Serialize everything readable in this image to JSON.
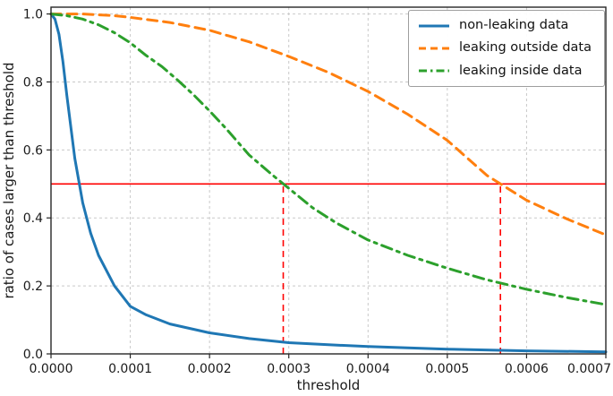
{
  "chart_data": {
    "type": "line",
    "title": "",
    "xlabel": "threshold",
    "ylabel": "ratio of cases larger than threshold",
    "xlim": [
      0.0,
      0.0007
    ],
    "ylim": [
      0.0,
      1.02
    ],
    "grid": true,
    "grid_color": "#c9c9c9",
    "axis_color": "#262626",
    "text_color": "#1a1a1a",
    "legend_position": "upper right",
    "x_ticks": [
      0.0,
      0.0001,
      0.0002,
      0.0003,
      0.0004,
      0.0005,
      0.0006,
      0.0007
    ],
    "x_tick_labels": [
      "0.0000",
      "0.0001",
      "0.0002",
      "0.0003",
      "0.0004",
      "0.0005",
      "0.0006",
      "0.0007"
    ],
    "y_ticks": [
      0.0,
      0.2,
      0.4,
      0.6,
      0.8,
      1.0
    ],
    "y_tick_labels": [
      "0.0",
      "0.2",
      "0.4",
      "0.6",
      "0.8",
      "1.0"
    ],
    "series": [
      {
        "name": "non-leaking data",
        "color": "#1f77b4",
        "style": "solid",
        "x": [
          0,
          5e-06,
          1e-05,
          1.5e-05,
          2e-05,
          3e-05,
          4e-05,
          5e-05,
          6e-05,
          8e-05,
          0.0001,
          0.00012,
          0.00015,
          0.0002,
          0.00025,
          0.0003,
          0.00035,
          0.0004,
          0.0005,
          0.0006,
          0.0007
        ],
        "y": [
          1.0,
          0.985,
          0.94,
          0.86,
          0.76,
          0.575,
          0.445,
          0.355,
          0.29,
          0.2,
          0.14,
          0.115,
          0.088,
          0.062,
          0.045,
          0.033,
          0.027,
          0.022,
          0.014,
          0.009,
          0.006
        ]
      },
      {
        "name": "leaking outside data",
        "color": "#ff7f0e",
        "style": "dashed",
        "x": [
          0,
          4e-05,
          8e-05,
          0.0001,
          0.00015,
          0.0002,
          0.00025,
          0.0003,
          0.00035,
          0.0004,
          0.00045,
          0.0005,
          0.00055,
          0.0006,
          0.00065,
          0.0007
        ],
        "y": [
          1.0,
          1.0,
          0.995,
          0.99,
          0.975,
          0.952,
          0.918,
          0.875,
          0.828,
          0.772,
          0.705,
          0.628,
          0.525,
          0.452,
          0.398,
          0.35
        ]
      },
      {
        "name": "leaking inside data",
        "color": "#2ca02c",
        "style": "dashdot",
        "x": [
          0,
          2e-05,
          4e-05,
          6e-05,
          8e-05,
          0.0001,
          0.00012,
          0.00014,
          0.00016,
          0.00018,
          0.0002,
          0.00022,
          0.00025,
          0.00028,
          0.0003,
          0.00033,
          0.00036,
          0.0004,
          0.00045,
          0.0005,
          0.00055,
          0.0006,
          0.00065,
          0.0007
        ],
        "y": [
          1.0,
          0.995,
          0.985,
          0.968,
          0.945,
          0.915,
          0.878,
          0.845,
          0.805,
          0.762,
          0.715,
          0.665,
          0.585,
          0.525,
          0.487,
          0.43,
          0.385,
          0.335,
          0.29,
          0.252,
          0.218,
          0.19,
          0.166,
          0.145
        ]
      }
    ],
    "reference_lines": {
      "horizontal": {
        "y": 0.5,
        "color": "#ff0000",
        "style": "solid"
      },
      "vertical": [
        {
          "x": 0.000293,
          "y_from": 0.0,
          "y_to": 0.5,
          "color": "#ff0000",
          "style": "dashed"
        },
        {
          "x": 0.000567,
          "y_from": 0.0,
          "y_to": 0.5,
          "color": "#ff0000",
          "style": "dashed"
        }
      ]
    }
  }
}
